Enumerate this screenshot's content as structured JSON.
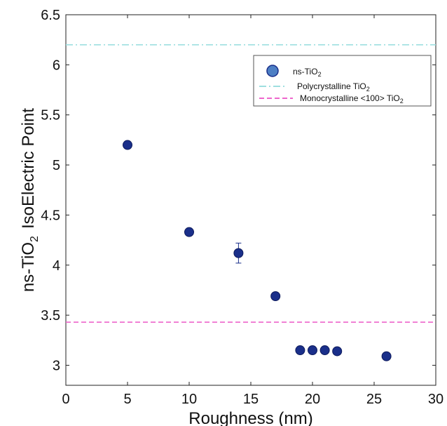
{
  "chart_data": {
    "type": "scatter",
    "xlabel": "Roughness (nm)",
    "ylabel": "ns-TiO",
    "ylabel_subscript": "2",
    "ylabel_suffix": "IsoElectric Point",
    "xlim": [
      0,
      30
    ],
    "ylim": [
      2.8,
      6.5
    ],
    "xticks": [
      "0",
      "5",
      "10",
      "15",
      "20",
      "25",
      "30"
    ],
    "yticks": [
      "3",
      "3.5",
      "4",
      "4.5",
      "5",
      "5.5",
      "6",
      "6.5"
    ],
    "grid": false,
    "legend_position": "top-right",
    "series": [
      {
        "name": "ns-TiO2",
        "legend_label": "ns-TiO",
        "legend_subscript": "2",
        "color": "#1a2f8a",
        "x": [
          5,
          10,
          14,
          17,
          19,
          20,
          21,
          22,
          26
        ],
        "y": [
          5.2,
          4.33,
          4.12,
          3.69,
          3.15,
          3.15,
          3.15,
          3.14,
          3.09
        ],
        "error": [
          0.03,
          0.03,
          0.1,
          0.02,
          0.03,
          0.03,
          0.03,
          0.03,
          0.02
        ]
      }
    ],
    "reference_lines": [
      {
        "name": "Polycrystalline TiO2",
        "legend_label": "Polycrystalline TiO",
        "legend_subscript": "2",
        "y": 6.2,
        "color": "#9edfe0",
        "style": "dash-dot"
      },
      {
        "name": "Monocrystalline <100> TiO2",
        "legend_label": "Monocrystalline <100> TiO",
        "legend_subscript": "2",
        "y": 3.43,
        "color": "#ee66cc",
        "style": "dashed"
      }
    ]
  }
}
